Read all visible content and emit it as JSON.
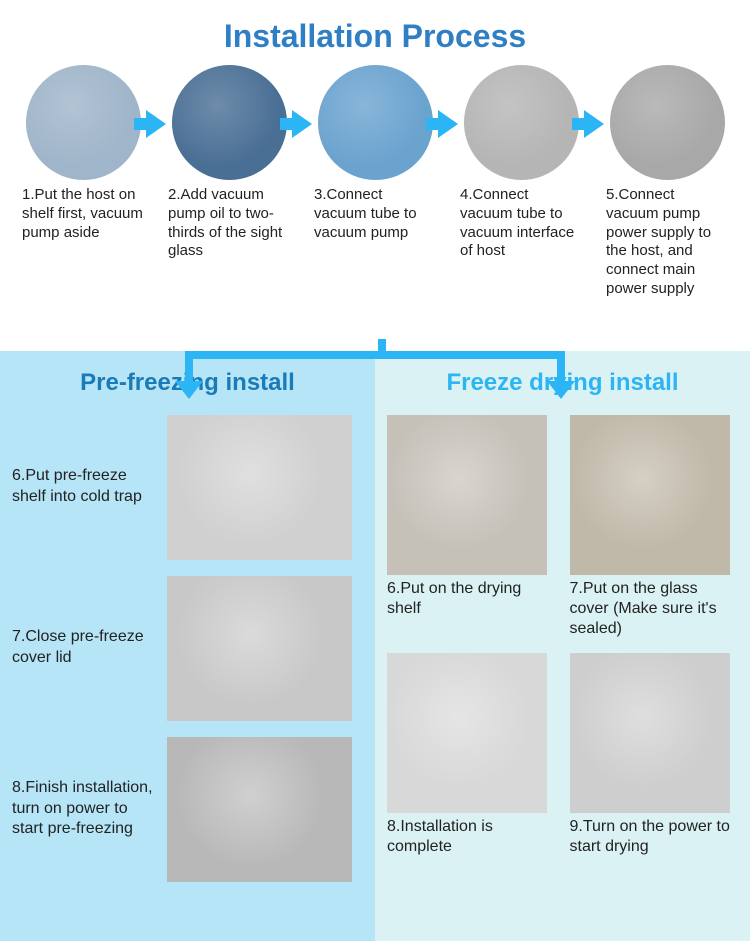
{
  "main_title": "Installation Process",
  "colors": {
    "title": "#2e7fc4",
    "arrow": "#2cb5f5",
    "left_panel_bg": "#b5e5f7",
    "right_panel_bg": "#dbf2f4",
    "left_title": "#1a7bb8",
    "right_title": "#2cb5f5",
    "text": "#222222"
  },
  "top_steps": [
    {
      "label": "1.Put the host on shelf first, vacuum pump aside",
      "img_bg": "#9fb5c9"
    },
    {
      "label": "2.Add vacuum pump oil to two-thirds of the sight glass",
      "img_bg": "#4a6f95"
    },
    {
      "label": "3.Connect vacuum tube to vacuum pump",
      "img_bg": "#6ba3cf"
    },
    {
      "label": "4.Connect vacuum tube to vacuum interface of host",
      "img_bg": "#b5b5b5"
    },
    {
      "label": "5.Connect vacuum pump power supply to the host, and connect main power supply",
      "img_bg": "#a8a8a8"
    }
  ],
  "left_panel": {
    "title": "Pre-freezing install",
    "steps": [
      {
        "label": "6.Put pre-freeze shelf into cold trap",
        "img_bg": "#d0d0d0"
      },
      {
        "label": "7.Close pre-freeze cover lid",
        "img_bg": "#c8c8c8"
      },
      {
        "label": "8.Finish installation, turn on power to start pre-freezing",
        "img_bg": "#b8b8b8"
      }
    ]
  },
  "right_panel": {
    "title": "Freeze drying install",
    "steps": [
      {
        "label": "6.Put on the drying shelf",
        "img_bg": "#c5c0b8"
      },
      {
        "label": "7.Put on the glass cover (Make sure it's sealed)",
        "img_bg": "#c0b8a8"
      },
      {
        "label": "8.Installation is complete",
        "img_bg": "#d8d8d8"
      },
      {
        "label": "9.Turn on the power to start drying",
        "img_bg": "#cecece"
      }
    ]
  }
}
